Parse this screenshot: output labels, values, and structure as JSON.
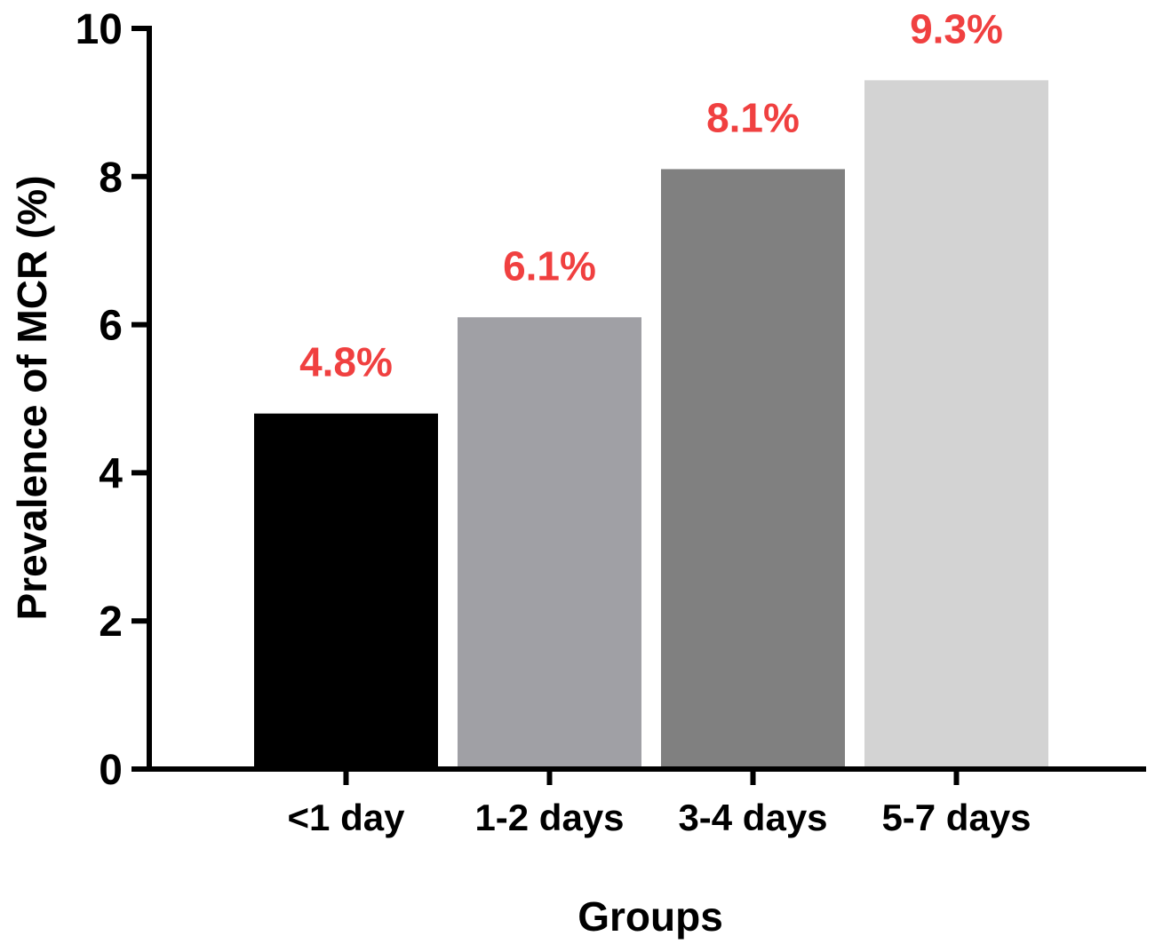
{
  "chart_data": {
    "type": "bar",
    "categories": [
      "<1 day",
      "1-2 days",
      "3-4 days",
      "5-7 days"
    ],
    "values": [
      4.8,
      6.1,
      8.1,
      9.3
    ],
    "data_labels": [
      "4.8%",
      "6.1%",
      "8.1%",
      "9.3%"
    ],
    "bar_colors": [
      "#000000",
      "#a0a0a5",
      "#808080",
      "#d3d3d3"
    ],
    "label_color": "#f04040",
    "xlabel": "Groups",
    "ylabel": "Prevalence of MCR (%)",
    "ylim": [
      0,
      10
    ],
    "yticks": [
      "0",
      "2",
      "4",
      "6",
      "8",
      "10"
    ],
    "ytick_values": [
      0,
      2,
      4,
      6,
      8,
      10
    ],
    "grid": false,
    "legend": "none"
  }
}
